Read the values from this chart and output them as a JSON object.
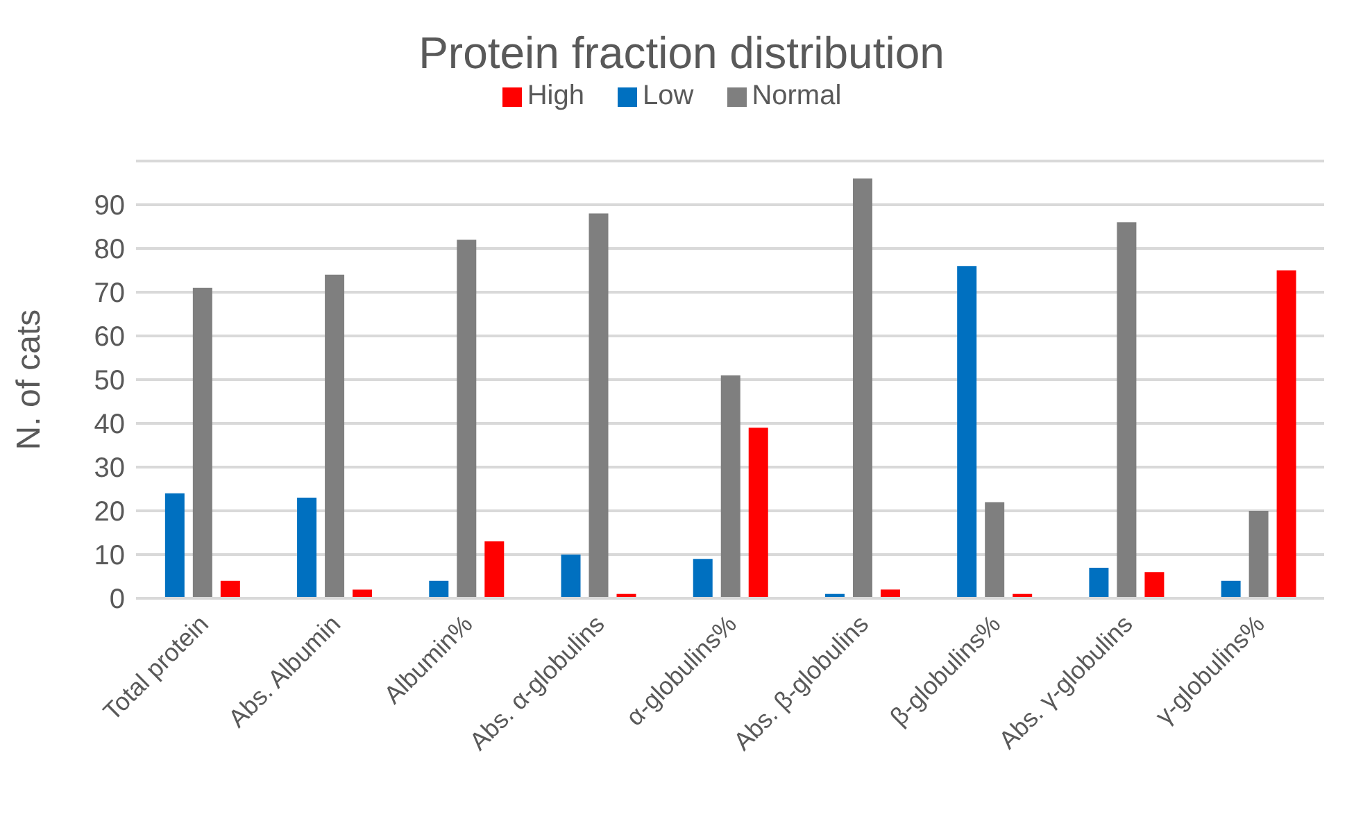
{
  "chart_data": {
    "type": "bar",
    "title": "Protein fraction distribution",
    "ylabel": "N. of cats",
    "categories": [
      "Total protein",
      "Abs. Albumin",
      "Albumin%",
      "Abs. α-globulins",
      "α-globulins%",
      "Abs. β-globulins",
      "β-globulins%",
      "Abs. γ-globulins",
      "γ-globulins%"
    ],
    "series": [
      {
        "name": "Low",
        "color": "#0070c0",
        "values": [
          24,
          23,
          4,
          10,
          9,
          1,
          76,
          7,
          4
        ]
      },
      {
        "name": "Normal",
        "color": "#7f7f7f",
        "values": [
          71,
          74,
          82,
          88,
          51,
          96,
          22,
          86,
          20
        ]
      },
      {
        "name": "High",
        "color": "#ff0000",
        "values": [
          4,
          2,
          13,
          1,
          39,
          2,
          1,
          6,
          75
        ]
      }
    ],
    "ylim": [
      0,
      100
    ],
    "yticks": [
      0,
      10,
      20,
      30,
      40,
      50,
      60,
      70,
      80,
      90
    ],
    "grid": "y",
    "legend": "top"
  }
}
